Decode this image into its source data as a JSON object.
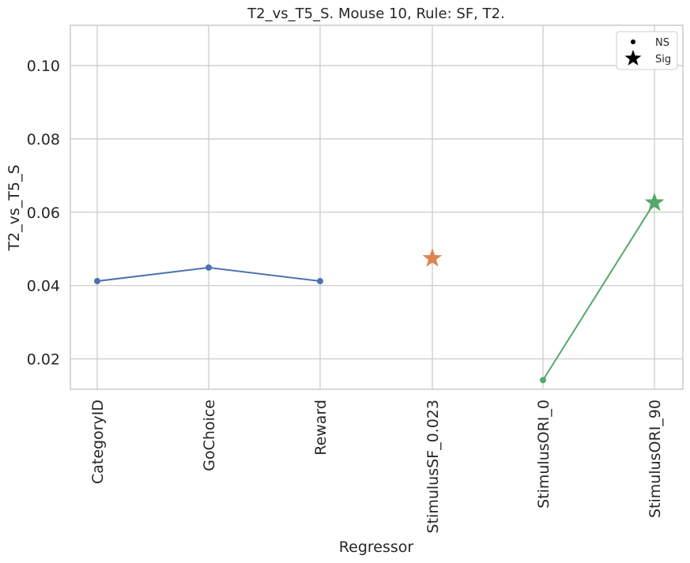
{
  "chart_data": {
    "type": "line",
    "title": "T2_vs_T5_S. Mouse 10, Rule: SF, T2.",
    "xlabel": "Regressor",
    "ylabel": "T2_vs_T5_S",
    "categories": [
      "CategoryID",
      "GoChoice",
      "Reward",
      "StimulusSF_0.023",
      "StimulusORI_0",
      "StimulusORI_90"
    ],
    "ylim": [
      0.0117,
      0.111
    ],
    "yticks": [
      0.02,
      0.04,
      0.06,
      0.08,
      0.1
    ],
    "ytick_labels": [
      "0.02",
      "0.04",
      "0.06",
      "0.08",
      "0.10"
    ],
    "grid": true,
    "legend_position": "top-right",
    "series": [
      {
        "color": "#4c72b0",
        "points": [
          {
            "category": "CategoryID",
            "value": 0.0412,
            "marker": "dot"
          },
          {
            "category": "GoChoice",
            "value": 0.0449,
            "marker": "dot"
          },
          {
            "category": "Reward",
            "value": 0.0412,
            "marker": "dot"
          }
        ]
      },
      {
        "color": "#dd8452",
        "points": [
          {
            "category": "StimulusSF_0.023",
            "value": 0.0474,
            "marker": "star"
          }
        ]
      },
      {
        "color": "#55a868",
        "points": [
          {
            "category": "StimulusORI_0",
            "value": 0.0142,
            "marker": "dot"
          },
          {
            "category": "StimulusORI_90",
            "value": 0.0626,
            "marker": "star"
          }
        ]
      }
    ],
    "legend": [
      {
        "label": "NS",
        "marker": "dot"
      },
      {
        "label": "Sig",
        "marker": "star"
      }
    ]
  },
  "style": {
    "grid_color": "#cccccc",
    "spine_color": "#cccccc",
    "text_color": "#262626",
    "legend_marker_color": "#000000"
  }
}
